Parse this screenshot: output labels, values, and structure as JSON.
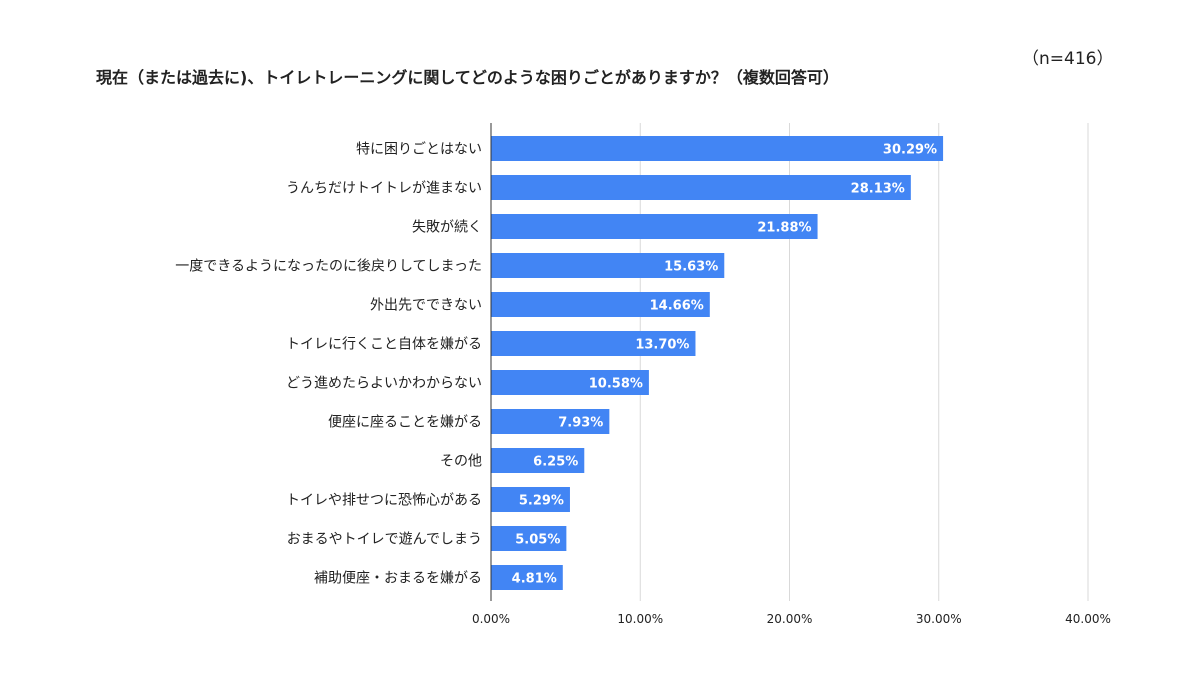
{
  "chart_data": {
    "type": "bar",
    "orientation": "horizontal",
    "title": "現在（または過去に)、トイレトレーニングに関してどのような困りごとがありますか？（複数回答可）",
    "note": "（n=416）",
    "categories": [
      "特に困りごとはない",
      "うんちだけトイトレが進まない",
      "失敗が続く",
      "一度できるようになったのに後戻りしてしまった",
      "外出先でできない",
      "トイレに行くこと自体を嫌がる",
      "どう進めたらよいかわからない",
      "便座に座ることを嫌がる",
      "その他",
      "トイレや排せつに恐怖心がある",
      "おまるやトイレで遊んでしまう",
      "補助便座・おまるを嫌がる"
    ],
    "values": [
      30.29,
      28.13,
      21.88,
      15.63,
      14.66,
      13.7,
      10.58,
      7.93,
      6.25,
      5.29,
      5.05,
      4.81
    ],
    "value_labels": [
      "30.29%",
      "28.13%",
      "21.88%",
      "15.63%",
      "14.66%",
      "13.70%",
      "10.58%",
      "7.93%",
      "6.25%",
      "5.29%",
      "5.05%",
      "4.81%"
    ],
    "xlim": [
      0,
      40
    ],
    "x_ticks": [
      0,
      10,
      20,
      30,
      40
    ],
    "x_tick_labels": [
      "0.00%",
      "10.00%",
      "20.00%",
      "30.00%",
      "40.00%"
    ],
    "xlabel": "",
    "ylabel": "",
    "grid": true,
    "legend": "none",
    "bar_color": "#4285f4"
  }
}
